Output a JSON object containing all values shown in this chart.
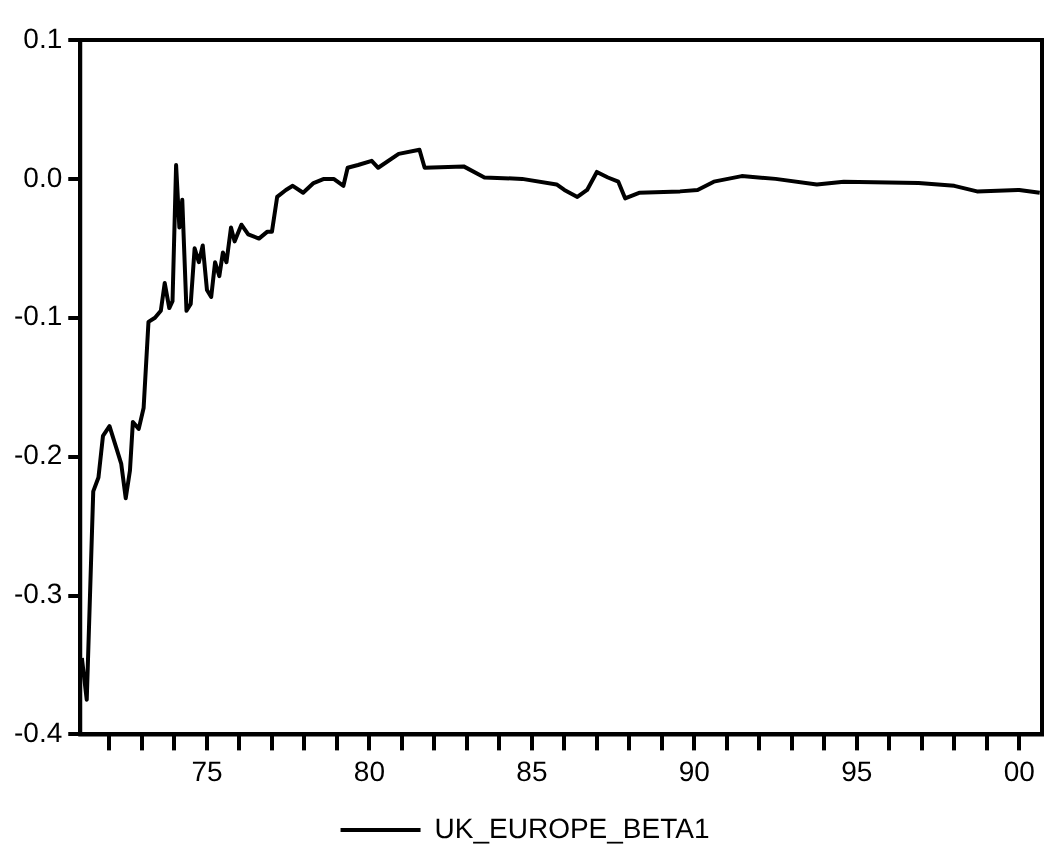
{
  "chart_data": {
    "type": "line",
    "legend": "bottom",
    "grid": false,
    "marker": "none",
    "line_style": "solid",
    "xlim": [
      1971.1,
      2000.7
    ],
    "xticks": [
      {
        "value": 1972,
        "label": null
      },
      {
        "value": 1973,
        "label": null
      },
      {
        "value": 1974,
        "label": null
      },
      {
        "value": 1975,
        "label": "75"
      },
      {
        "value": 1976,
        "label": null
      },
      {
        "value": 1977,
        "label": null
      },
      {
        "value": 1978,
        "label": null
      },
      {
        "value": 1979,
        "label": null
      },
      {
        "value": 1980,
        "label": "80"
      },
      {
        "value": 1981,
        "label": null
      },
      {
        "value": 1982,
        "label": null
      },
      {
        "value": 1983,
        "label": null
      },
      {
        "value": 1984,
        "label": null
      },
      {
        "value": 1985,
        "label": "85"
      },
      {
        "value": 1986,
        "label": null
      },
      {
        "value": 1987,
        "label": null
      },
      {
        "value": 1988,
        "label": null
      },
      {
        "value": 1989,
        "label": null
      },
      {
        "value": 1990,
        "label": "90"
      },
      {
        "value": 1991,
        "label": null
      },
      {
        "value": 1992,
        "label": null
      },
      {
        "value": 1993,
        "label": null
      },
      {
        "value": 1994,
        "label": null
      },
      {
        "value": 1995,
        "label": "95"
      },
      {
        "value": 1996,
        "label": null
      },
      {
        "value": 1997,
        "label": null
      },
      {
        "value": 1998,
        "label": null
      },
      {
        "value": 1999,
        "label": null
      },
      {
        "value": 2000,
        "label": "00"
      }
    ],
    "ylim": [
      -0.4,
      0.1
    ],
    "yticks": [
      -0.4,
      -0.3,
      -0.2,
      -0.1,
      {
        "value": 0,
        "label": "0.0"
      },
      0.1
    ],
    "series": [
      {
        "name": "UK_EUROPE_BETA1",
        "color": "#000000",
        "x": [
          1971.15,
          1971.3,
          1971.4,
          1971.5,
          1971.66,
          1971.8,
          1972.0,
          1972.2,
          1972.36,
          1972.5,
          1972.63,
          1972.72,
          1972.9,
          1973.05,
          1973.2,
          1973.4,
          1973.58,
          1973.7,
          1973.84,
          1973.94,
          1974.05,
          1974.15,
          1974.24,
          1974.37,
          1974.5,
          1974.62,
          1974.75,
          1974.87,
          1975.0,
          1975.13,
          1975.25,
          1975.38,
          1975.49,
          1975.6,
          1975.74,
          1975.85,
          1976.06,
          1976.27,
          1976.6,
          1976.86,
          1977.0,
          1977.16,
          1977.43,
          1977.64,
          1977.96,
          1978.28,
          1978.6,
          1978.9,
          1979.2,
          1979.33,
          1979.65,
          1980.07,
          1980.27,
          1980.9,
          1981.54,
          1981.7,
          1982.9,
          1983.54,
          1984.7,
          1985.76,
          1986.0,
          1986.4,
          1986.7,
          1987.0,
          1987.34,
          1987.66,
          1987.87,
          1988.3,
          1989.56,
          1990.1,
          1990.6,
          1991.46,
          1992.5,
          1993.77,
          1994.6,
          1996.9,
          1998.0,
          1998.7,
          2000.0,
          2000.63
        ],
        "values": [
          -0.345,
          -0.375,
          -0.3,
          -0.225,
          -0.215,
          -0.185,
          -0.178,
          -0.193,
          -0.205,
          -0.23,
          -0.21,
          -0.175,
          -0.18,
          -0.165,
          -0.103,
          -0.1,
          -0.095,
          -0.075,
          -0.093,
          -0.088,
          0.01,
          -0.035,
          -0.015,
          -0.095,
          -0.09,
          -0.05,
          -0.06,
          -0.048,
          -0.08,
          -0.085,
          -0.06,
          -0.07,
          -0.053,
          -0.06,
          -0.035,
          -0.045,
          -0.033,
          -0.04,
          -0.043,
          -0.038,
          -0.038,
          -0.013,
          -0.008,
          -0.005,
          -0.01,
          -0.003,
          0.0,
          0.0,
          -0.005,
          0.008,
          0.01,
          0.013,
          0.008,
          0.018,
          0.021,
          0.008,
          0.009,
          0.001,
          0.0,
          -0.004,
          -0.008,
          -0.013,
          -0.008,
          0.005,
          0.001,
          -0.002,
          -0.014,
          -0.01,
          -0.009,
          -0.008,
          -0.002,
          0.002,
          0.0,
          -0.004,
          -0.002,
          -0.003,
          -0.005,
          -0.009,
          -0.008,
          -0.01
        ]
      }
    ]
  }
}
